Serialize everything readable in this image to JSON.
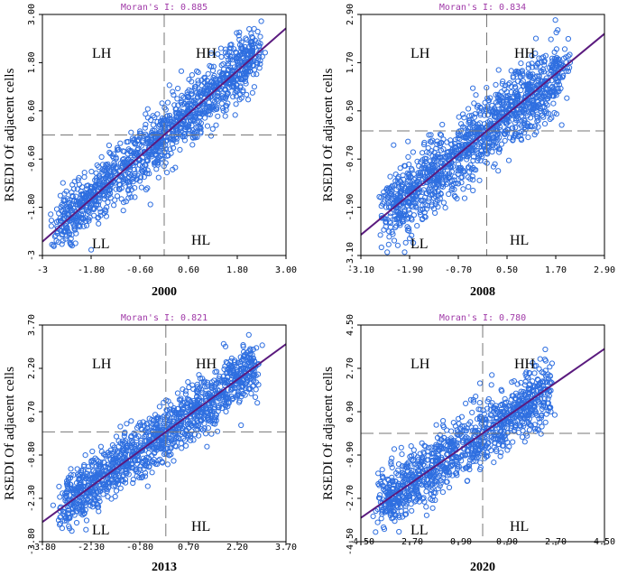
{
  "chart_data": [
    {
      "type": "scatter",
      "title": "Moran's I: 0.885",
      "year": "2000",
      "ylabel": "RSEDI Of adjacent cells",
      "xlim": [
        -3,
        3
      ],
      "ylim": [
        -3,
        3
      ],
      "xticks": [
        "-3",
        "-1.80",
        "-0.60",
        "0.60",
        "1.80",
        "3.00"
      ],
      "yticks": [
        "-3",
        "-1.80",
        "-0.60",
        "0.60",
        "1.80",
        "3.00"
      ],
      "quadrants": {
        "LH": "LH",
        "HH": "HH",
        "LL": "LL",
        "HL": "HL"
      },
      "cross": [
        0,
        0
      ],
      "fit": {
        "slope": 0.885,
        "intercept": 0
      },
      "cloud": {
        "xmin": -2.6,
        "xmax": 2.3,
        "spread": 0.38,
        "count": 1300
      }
    },
    {
      "type": "scatter",
      "title": "Moran's I: 0.834",
      "year": "2008",
      "ylabel": "RSEDI Of adjacent cells",
      "xlim": [
        -3.1,
        2.9
      ],
      "ylim": [
        -3.1,
        2.9
      ],
      "xticks": [
        "-3.10",
        "-1.90",
        "-0.70",
        "0.50",
        "1.70",
        "2.90"
      ],
      "yticks": [
        "-3.10",
        "-1.90",
        "-0.70",
        "0.50",
        "1.70",
        "2.90"
      ],
      "quadrants": {
        "LH": "LH",
        "HH": "HH",
        "LL": "LL",
        "HL": "HL"
      },
      "cross": [
        0,
        0
      ],
      "fit": {
        "slope": 0.834,
        "intercept": 0
      },
      "cloud": {
        "xmin": -2.5,
        "xmax": 1.9,
        "spread": 0.45,
        "count": 1300
      }
    },
    {
      "type": "scatter",
      "title": "Moran's I: 0.821",
      "year": "2013",
      "ylabel": "RSEDI Of adjacent cells",
      "xlim": [
        -3.8,
        3.7
      ],
      "ylim": [
        -3.8,
        3.7
      ],
      "xticks": [
        "-3.80",
        "-2.30",
        "-0.80",
        "0.70",
        "2.20",
        "3.70"
      ],
      "yticks": [
        "-3.80",
        "-2.30",
        "-0.80",
        "0.70",
        "2.20",
        "3.70"
      ],
      "quadrants": {
        "LH": "LH",
        "HH": "HH",
        "LL": "LL",
        "HL": "HL"
      },
      "cross": [
        0,
        0
      ],
      "fit": {
        "slope": 0.821,
        "intercept": 0
      },
      "cloud": {
        "xmin": -3.2,
        "xmax": 2.8,
        "spread": 0.5,
        "count": 1300
      }
    },
    {
      "type": "scatter",
      "title": "Moran's I: 0.780",
      "year": "2020",
      "ylabel": "RSEDI Of adjacent cells",
      "xlim": [
        -4.5,
        4.5
      ],
      "ylim": [
        -4.5,
        4.5
      ],
      "xticks": [
        "-4.50",
        "-2.70",
        "-0.90",
        "0.90",
        "2.70",
        "4.50"
      ],
      "yticks": [
        "-4.50",
        "-2.70",
        "-0.90",
        "0.90",
        "2.70",
        "4.50"
      ],
      "quadrants": {
        "LH": "LH",
        "HH": "HH",
        "LL": "LL",
        "HL": "HL"
      },
      "cross": [
        0,
        0
      ],
      "fit": {
        "slope": 0.78,
        "intercept": 0
      },
      "cloud": {
        "xmin": -3.8,
        "xmax": 2.5,
        "spread": 0.65,
        "count": 1100
      }
    }
  ]
}
